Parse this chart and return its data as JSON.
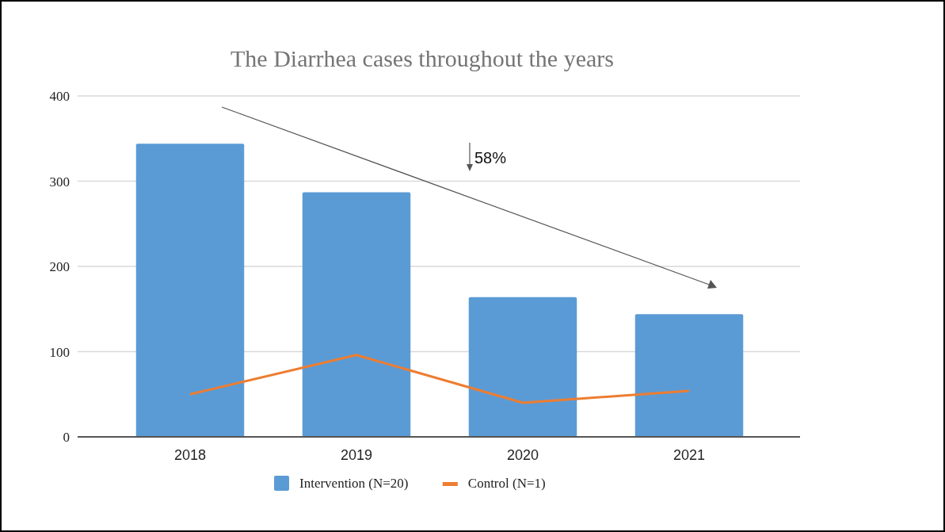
{
  "chart_data": {
    "type": "bar",
    "title": "The Diarrhea cases throughout the years",
    "categories": [
      "2018",
      "2019",
      "2020",
      "2021"
    ],
    "series": [
      {
        "name": "Intervention (N=20)",
        "color": "#5b9bd5",
        "values": [
          344,
          287,
          164,
          144
        ]
      },
      {
        "name": "Control (N=1)",
        "type": "line",
        "color": "#ed7d31",
        "values": [
          50,
          96,
          40,
          54
        ]
      }
    ],
    "ylim": [
      0,
      400
    ],
    "yticks": [
      0,
      100,
      200,
      300,
      400
    ],
    "grid": "y",
    "legend": "bottom",
    "annotations": [
      "58%"
    ]
  }
}
